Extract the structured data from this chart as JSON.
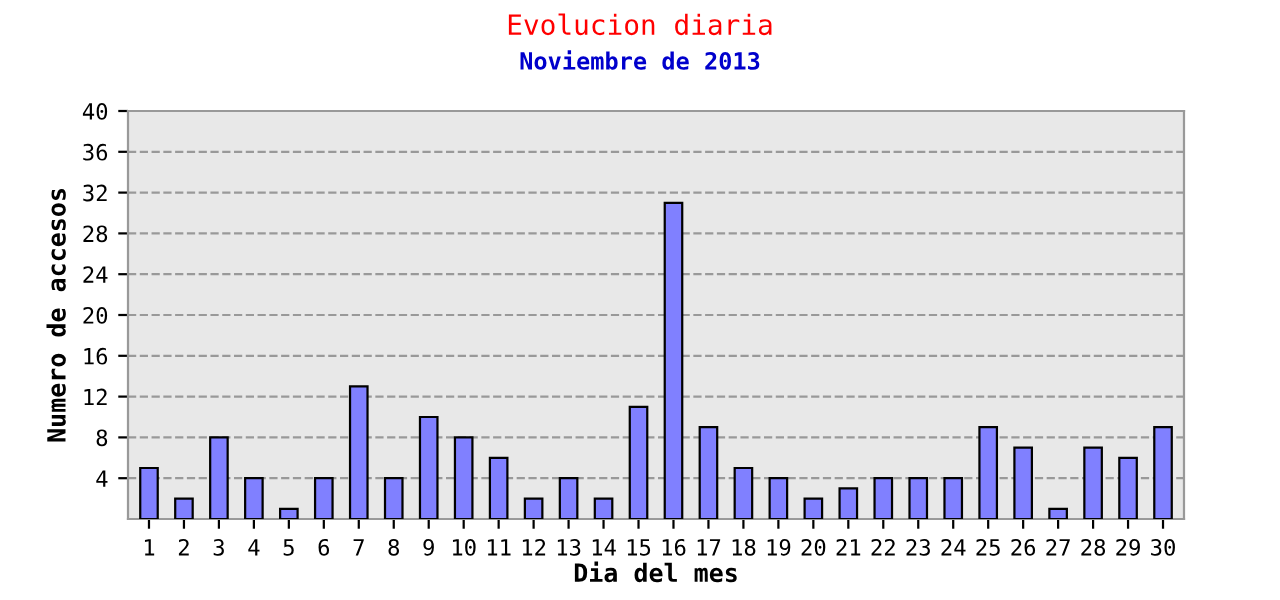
{
  "chart_data": {
    "type": "bar",
    "title": "Evolucion diaria",
    "subtitle": "Noviembre de 2013",
    "xlabel": "Dia del mes",
    "ylabel": "Numero de accesos",
    "categories": [
      "1",
      "2",
      "3",
      "4",
      "5",
      "6",
      "7",
      "8",
      "9",
      "10",
      "11",
      "12",
      "13",
      "14",
      "15",
      "16",
      "17",
      "18",
      "19",
      "20",
      "21",
      "22",
      "23",
      "24",
      "25",
      "26",
      "27",
      "28",
      "29",
      "30"
    ],
    "values": [
      5,
      2,
      8,
      4,
      1,
      4,
      13,
      4,
      10,
      8,
      6,
      2,
      4,
      2,
      11,
      31,
      9,
      5,
      4,
      2,
      3,
      4,
      4,
      4,
      9,
      7,
      1,
      7,
      6,
      9
    ],
    "color": "#8080ff",
    "ylim": [
      0,
      40
    ],
    "yticks": [
      4,
      8,
      12,
      16,
      20,
      24,
      28,
      32,
      36,
      40
    ],
    "grid": "y",
    "line_style": "dashed",
    "legend": false
  }
}
